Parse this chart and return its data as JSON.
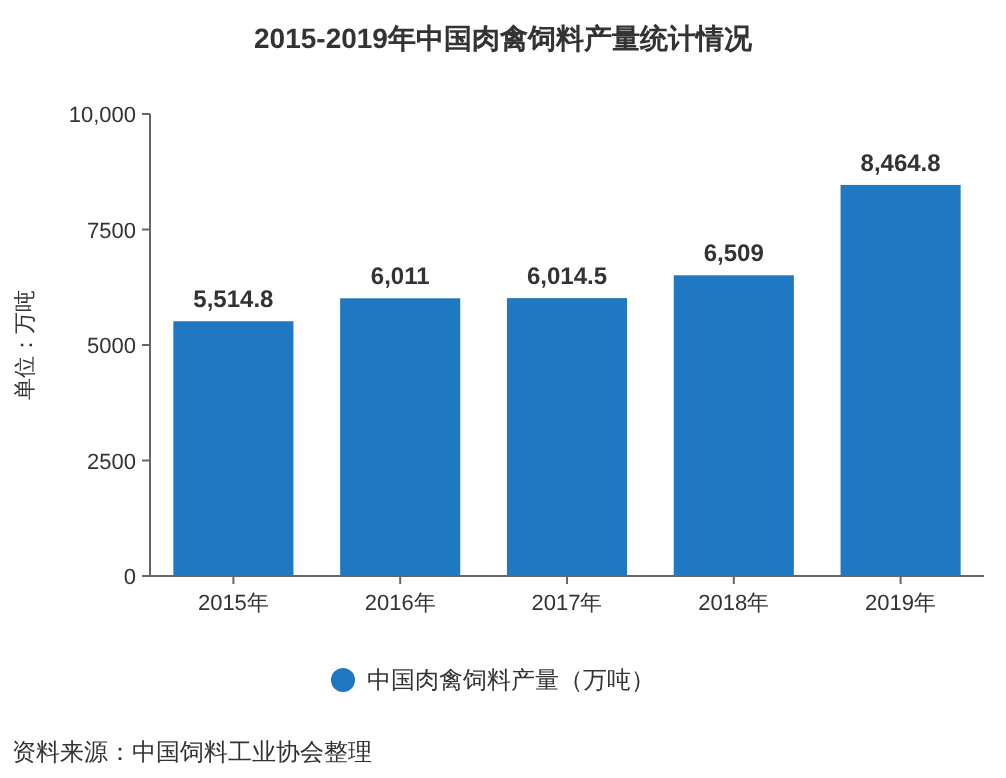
{
  "chart_data": {
    "type": "bar",
    "title": "2015-2019年中国肉禽饲料产量统计情况",
    "ylabel": "单位：万吨",
    "categories": [
      "2015年",
      "2016年",
      "2017年",
      "2018年",
      "2019年"
    ],
    "series": [
      {
        "name": "中国肉禽饲料产量（万吨）",
        "color": "#1f78c1",
        "values": [
          5514.8,
          6011,
          6014.5,
          6509,
          8464.8
        ],
        "value_labels": [
          "5,514.8",
          "6,011",
          "6,014.5",
          "6,509",
          "8,464.8"
        ]
      }
    ],
    "ylim": [
      0,
      10000
    ],
    "yticks": [
      0,
      2500,
      5000,
      7500,
      {
        "value": 10000,
        "label": "10,000"
      }
    ],
    "grid": false,
    "legend": "bottom",
    "marker": "circle",
    "annotations": [
      "资料来源：中国饲料工业协会整理"
    ]
  }
}
